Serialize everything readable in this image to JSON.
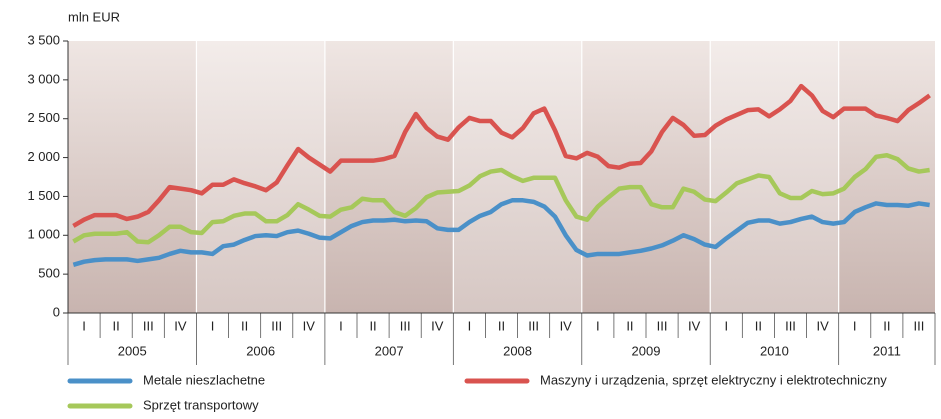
{
  "chart_data": {
    "type": "line",
    "y_label": "mln EUR",
    "categories": [
      null,
      "I",
      null,
      null,
      "II",
      null,
      null,
      "III",
      null,
      null,
      "IV",
      null,
      null,
      "I",
      null,
      null,
      "II",
      null,
      null,
      "III",
      null,
      null,
      "IV",
      null,
      null,
      "I",
      null,
      null,
      "II",
      null,
      null,
      "III",
      null,
      null,
      "IV",
      null,
      null,
      "I",
      null,
      null,
      "II",
      null,
      null,
      "III",
      null,
      null,
      "IV",
      null,
      null,
      "I",
      null,
      null,
      "II",
      null,
      null,
      "III",
      null,
      null,
      "IV",
      null,
      null,
      "I",
      null,
      null,
      "II",
      null,
      null,
      "III",
      null,
      null,
      "IV",
      null,
      null,
      "I",
      null,
      null,
      "II",
      null,
      null,
      "III",
      null
    ],
    "years": [
      "2005",
      "2006",
      "2007",
      "2008",
      "2009",
      "2010",
      "2011"
    ],
    "series": [
      {
        "name": "Metale nieszlachetne",
        "color": "#4a90c8",
        "values": [
          620,
          660,
          680,
          690,
          690,
          690,
          670,
          690,
          710,
          760,
          800,
          780,
          780,
          760,
          860,
          880,
          940,
          990,
          1000,
          990,
          1040,
          1060,
          1020,
          970,
          960,
          1040,
          1120,
          1170,
          1190,
          1190,
          1200,
          1180,
          1190,
          1180,
          1090,
          1070,
          1070,
          1170,
          1250,
          1300,
          1400,
          1450,
          1450,
          1430,
          1370,
          1240,
          1000,
          810,
          740,
          760,
          760,
          760,
          780,
          800,
          830,
          870,
          930,
          1000,
          950,
          880,
          850,
          960,
          1060,
          1160,
          1190,
          1190,
          1150,
          1170,
          1210,
          1240,
          1170,
          1150,
          1170,
          1300,
          1360,
          1410,
          1390,
          1390,
          1380,
          1410,
          1390
        ]
      },
      {
        "name": "Maszyny i urządzenia, sprzęt elektryczny i elektrotechniczny",
        "color": "#d9534f",
        "values": [
          1120,
          1200,
          1260,
          1260,
          1260,
          1210,
          1240,
          1300,
          1450,
          1620,
          1600,
          1580,
          1540,
          1650,
          1650,
          1720,
          1670,
          1630,
          1580,
          1680,
          1900,
          2110,
          2000,
          1910,
          1820,
          1960,
          1960,
          1960,
          1960,
          1980,
          2020,
          2330,
          2560,
          2380,
          2270,
          2230,
          2390,
          2510,
          2470,
          2470,
          2320,
          2260,
          2380,
          2570,
          2630,
          2350,
          2020,
          1990,
          2060,
          2010,
          1890,
          1870,
          1920,
          1930,
          2080,
          2330,
          2510,
          2420,
          2280,
          2290,
          2410,
          2490,
          2550,
          2610,
          2620,
          2530,
          2620,
          2730,
          2920,
          2800,
          2600,
          2520,
          2630,
          2630,
          2630,
          2540,
          2510,
          2470,
          2610,
          2700,
          2800
        ]
      },
      {
        "name": "Sprzęt transportowy",
        "color": "#a6c85a",
        "values": [
          920,
          1000,
          1020,
          1020,
          1020,
          1040,
          920,
          910,
          1000,
          1110,
          1110,
          1040,
          1030,
          1170,
          1180,
          1250,
          1280,
          1280,
          1180,
          1180,
          1260,
          1400,
          1330,
          1250,
          1240,
          1330,
          1360,
          1470,
          1450,
          1450,
          1300,
          1250,
          1350,
          1490,
          1550,
          1560,
          1570,
          1640,
          1760,
          1820,
          1840,
          1760,
          1700,
          1740,
          1740,
          1740,
          1450,
          1240,
          1200,
          1370,
          1490,
          1600,
          1620,
          1620,
          1400,
          1360,
          1360,
          1600,
          1560,
          1460,
          1440,
          1550,
          1670,
          1720,
          1770,
          1750,
          1540,
          1480,
          1480,
          1570,
          1530,
          1540,
          1600,
          1750,
          1850,
          2010,
          2030,
          1980,
          1860,
          1820,
          1840
        ]
      }
    ],
    "ylim": [
      0,
      3500
    ],
    "yticks": [
      0,
      500,
      {
        "value": 1000,
        "label": "1 000"
      },
      {
        "value": 1500,
        "label": "1 500"
      },
      {
        "value": 2000,
        "label": "2 000"
      },
      {
        "value": 2500,
        "label": "2 500"
      },
      {
        "value": 3000,
        "label": "3 000"
      },
      {
        "value": 3500,
        "label": "3 500"
      }
    ],
    "legend": "bottom"
  }
}
